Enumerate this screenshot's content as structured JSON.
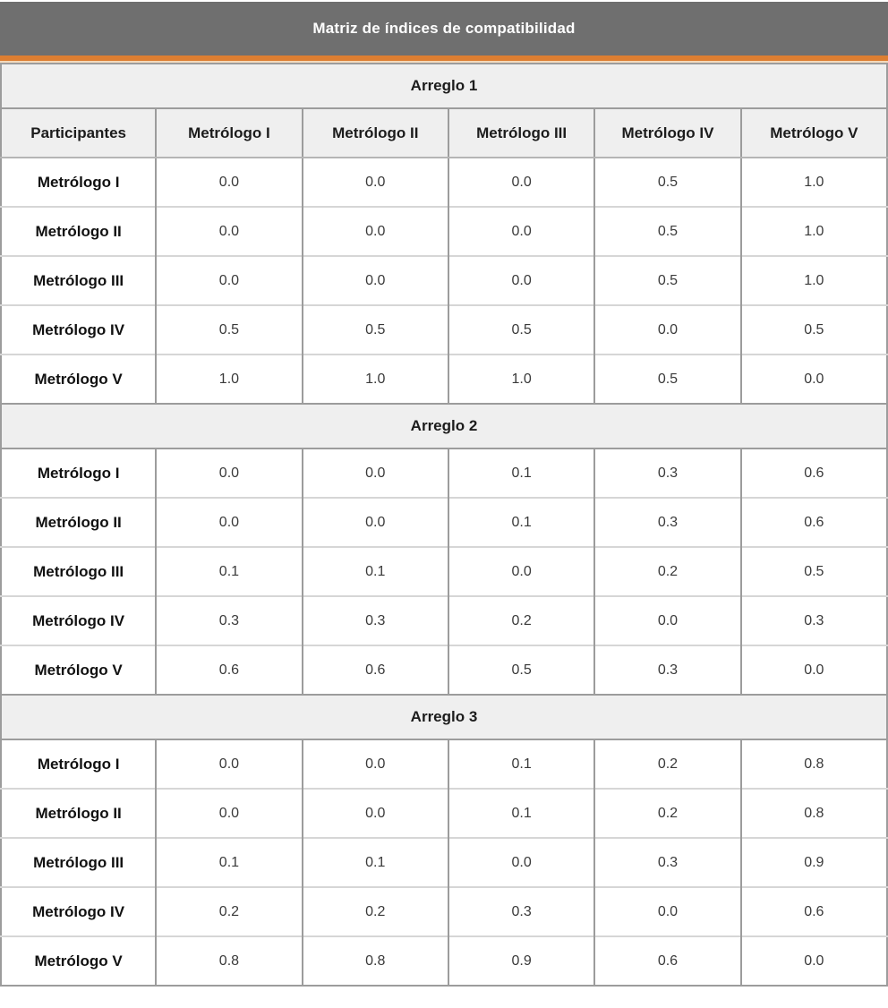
{
  "title": "Matriz de índices de compatibilidad",
  "colors": {
    "title_bar_bg": "#6f6f6f",
    "title_text": "#ffffff",
    "accent_orange": "#dd7e32",
    "section_band_bg": "#efefef",
    "grid_dark": "#9c9c9c",
    "grid_light": "#d6d6d6"
  },
  "table": {
    "column_headers": [
      "Participantes",
      "Metrólogo I",
      "Metrólogo II",
      "Metrólogo III",
      "Metrólogo IV",
      "Metrólogo V"
    ],
    "sections": [
      {
        "label": "Arreglo 1",
        "rows": [
          {
            "label": "Metrólogo I",
            "values": [
              "0.0",
              "0.0",
              "0.0",
              "0.5",
              "1.0"
            ]
          },
          {
            "label": "Metrólogo II",
            "values": [
              "0.0",
              "0.0",
              "0.0",
              "0.5",
              "1.0"
            ]
          },
          {
            "label": "Metrólogo III",
            "values": [
              "0.0",
              "0.0",
              "0.0",
              "0.5",
              "1.0"
            ]
          },
          {
            "label": "Metrólogo IV",
            "values": [
              "0.5",
              "0.5",
              "0.5",
              "0.0",
              "0.5"
            ]
          },
          {
            "label": "Metrólogo V",
            "values": [
              "1.0",
              "1.0",
              "1.0",
              "0.5",
              "0.0"
            ]
          }
        ]
      },
      {
        "label": "Arreglo 2",
        "rows": [
          {
            "label": "Metrólogo I",
            "values": [
              "0.0",
              "0.0",
              "0.1",
              "0.3",
              "0.6"
            ]
          },
          {
            "label": "Metrólogo II",
            "values": [
              "0.0",
              "0.0",
              "0.1",
              "0.3",
              "0.6"
            ]
          },
          {
            "label": "Metrólogo III",
            "values": [
              "0.1",
              "0.1",
              "0.0",
              "0.2",
              "0.5"
            ]
          },
          {
            "label": "Metrólogo IV",
            "values": [
              "0.3",
              "0.3",
              "0.2",
              "0.0",
              "0.3"
            ]
          },
          {
            "label": "Metrólogo V",
            "values": [
              "0.6",
              "0.6",
              "0.5",
              "0.3",
              "0.0"
            ]
          }
        ]
      },
      {
        "label": "Arreglo 3",
        "rows": [
          {
            "label": "Metrólogo I",
            "values": [
              "0.0",
              "0.0",
              "0.1",
              "0.2",
              "0.8"
            ]
          },
          {
            "label": "Metrólogo II",
            "values": [
              "0.0",
              "0.0",
              "0.1",
              "0.2",
              "0.8"
            ]
          },
          {
            "label": "Metrólogo III",
            "values": [
              "0.1",
              "0.1",
              "0.0",
              "0.3",
              "0.9"
            ]
          },
          {
            "label": "Metrólogo IV",
            "values": [
              "0.2",
              "0.2",
              "0.3",
              "0.0",
              "0.6"
            ]
          },
          {
            "label": "Metrólogo V",
            "values": [
              "0.8",
              "0.8",
              "0.9",
              "0.6",
              "0.0"
            ]
          }
        ]
      }
    ]
  }
}
